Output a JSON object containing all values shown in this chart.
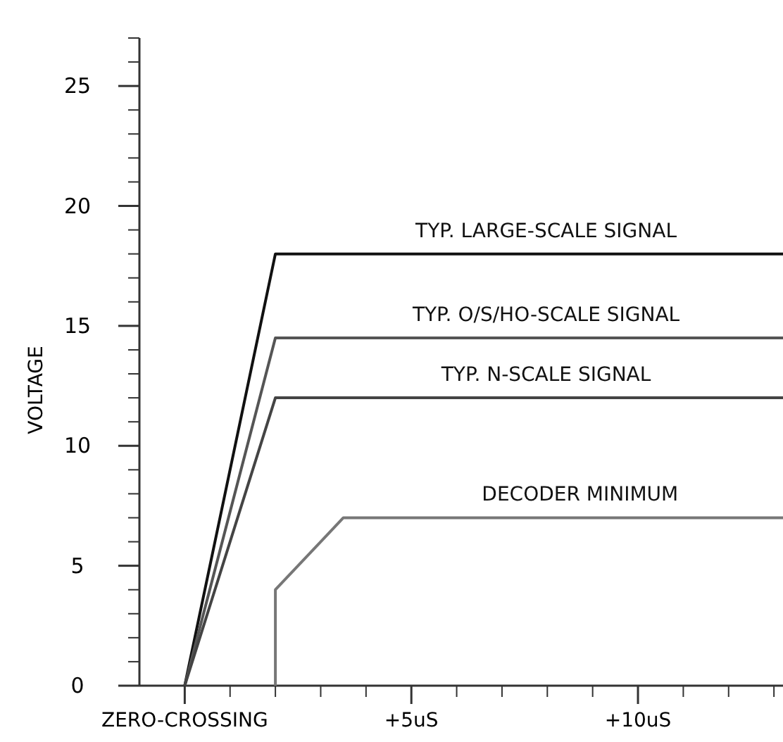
{
  "chart_data": {
    "type": "line",
    "ylabel": "VOLTAGE",
    "xlim": [
      -1,
      13.2
    ],
    "ylim": [
      0,
      27
    ],
    "xticks": [
      {
        "value": 0,
        "label": "ZERO-CROSSING"
      },
      {
        "value": 1,
        "label": null
      },
      {
        "value": 2,
        "label": null
      },
      {
        "value": 3,
        "label": null
      },
      {
        "value": 4,
        "label": null
      },
      {
        "value": 5,
        "label": "+5uS"
      },
      {
        "value": 6,
        "label": null
      },
      {
        "value": 7,
        "label": null
      },
      {
        "value": 8,
        "label": null
      },
      {
        "value": 9,
        "label": null
      },
      {
        "value": 10,
        "label": "+10uS"
      },
      {
        "value": 11,
        "label": null
      },
      {
        "value": 12,
        "label": null
      },
      {
        "value": 13,
        "label": null
      }
    ],
    "yticks": [
      0,
      {
        "value": 1,
        "label": null
      },
      {
        "value": 2,
        "label": null
      },
      {
        "value": 3,
        "label": null
      },
      {
        "value": 4,
        "label": null
      },
      5,
      {
        "value": 6,
        "label": null
      },
      {
        "value": 7,
        "label": null
      },
      {
        "value": 8,
        "label": null
      },
      {
        "value": 9,
        "label": null
      },
      10,
      {
        "value": 11,
        "label": null
      },
      {
        "value": 12,
        "label": null
      },
      {
        "value": 13,
        "label": null
      },
      {
        "value": 14,
        "label": null
      },
      15,
      {
        "value": 16,
        "label": null
      },
      {
        "value": 17,
        "label": null
      },
      {
        "value": 18,
        "label": null
      },
      {
        "value": 19,
        "label": null
      },
      20,
      {
        "value": 21,
        "label": null
      },
      {
        "value": 22,
        "label": null
      },
      {
        "value": 23,
        "label": null
      },
      {
        "value": 24,
        "label": null
      },
      25,
      {
        "value": 26,
        "label": null
      },
      {
        "value": 27,
        "label": null
      }
    ],
    "grid": false,
    "marker": "none",
    "line_style": "solid",
    "series": [
      {
        "name": "TYP. LARGE-SCALE SIGNAL",
        "color": "#111111",
        "x": [
          0,
          2,
          13.2
        ],
        "values": [
          0,
          18,
          18
        ]
      },
      {
        "name": "TYP. O/S/HO-SCALE SIGNAL",
        "color": "#555555",
        "x": [
          0,
          2,
          13.2
        ],
        "values": [
          0,
          14.5,
          14.5
        ]
      },
      {
        "name": "TYP. N-SCALE SIGNAL",
        "color": "#444444",
        "x": [
          0,
          2,
          13.2
        ],
        "values": [
          0,
          12,
          12
        ]
      },
      {
        "name": "DECODER MINIMUM",
        "color": "#777777",
        "x": [
          2,
          2,
          3.5,
          13.2
        ],
        "values": [
          0,
          4,
          7,
          7
        ]
      }
    ]
  }
}
